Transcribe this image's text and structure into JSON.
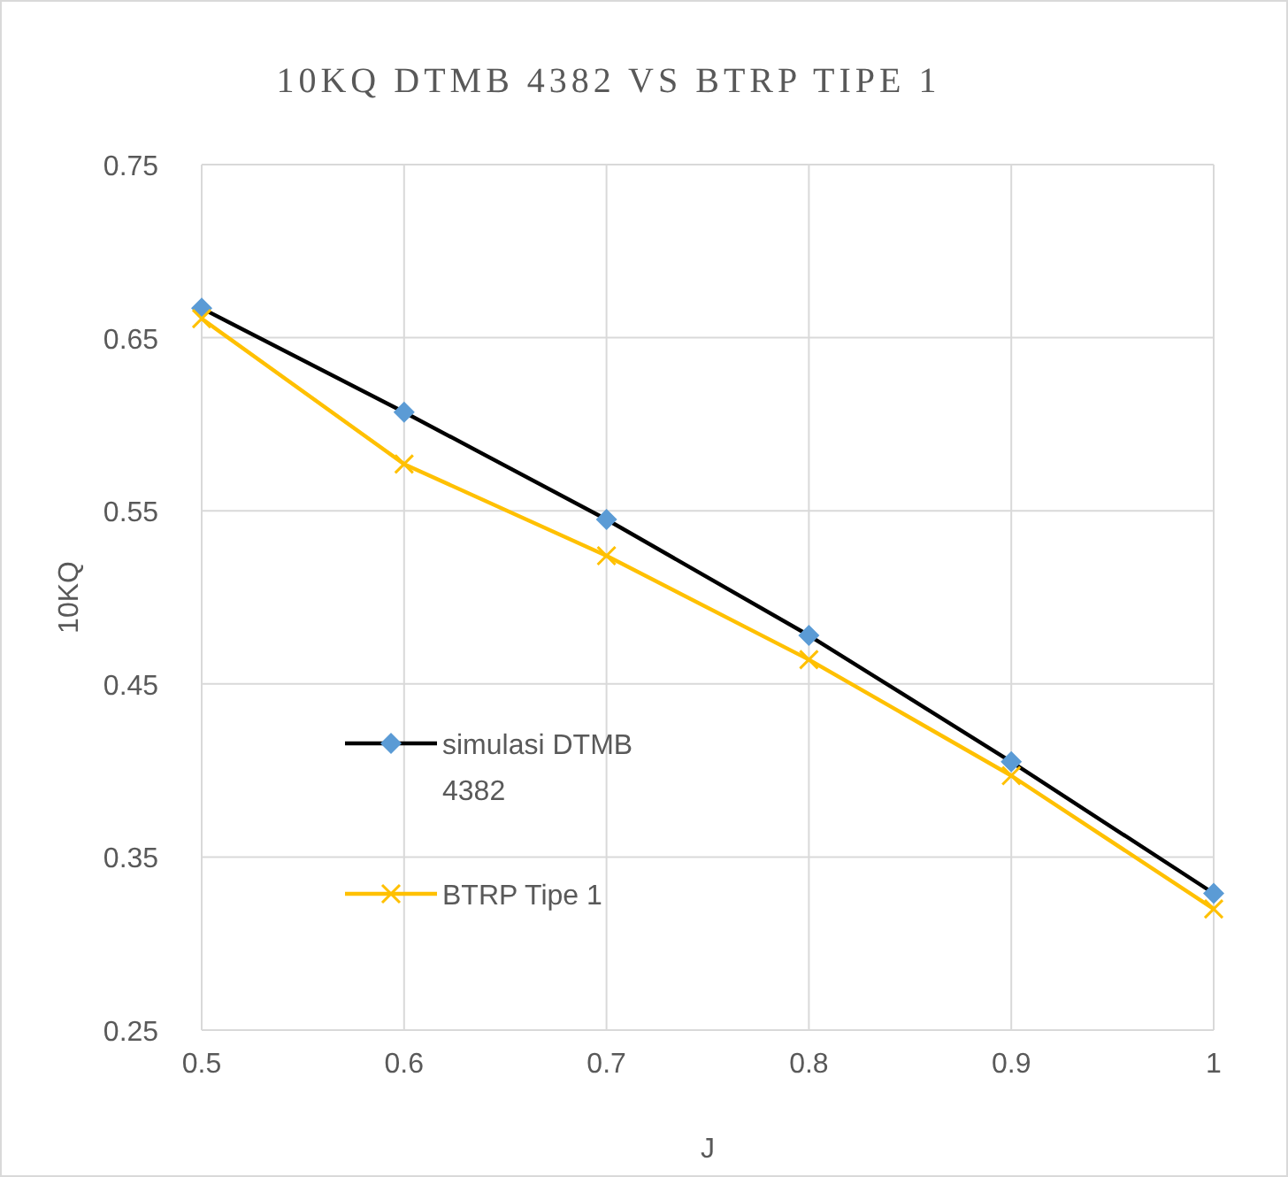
{
  "chart_data": {
    "type": "line",
    "title": "10KQ DTMB 4382 VS BTRP TIPE 1",
    "xlabel": "J",
    "ylabel": "10KQ",
    "x": [
      0.5,
      0.6,
      0.7,
      0.8,
      0.9,
      1
    ],
    "series": [
      {
        "name": "simulasi DTMB 4382",
        "color": "#000000",
        "colors": [
          "#5b9bd5",
          "#5b9bd5",
          "#5b9bd5",
          "#5b9bd5",
          "#5b9bd5",
          "#5b9bd5"
        ],
        "marker": "diamond",
        "values": [
          0.667,
          0.607,
          0.545,
          0.478,
          0.405,
          0.329
        ]
      },
      {
        "name": "BTRP Tipe 1",
        "color": "#ffc000",
        "marker": "cross",
        "values": [
          0.661,
          0.577,
          0.524,
          0.464,
          0.397,
          0.32
        ]
      }
    ],
    "xlim": [
      0.5,
      1
    ],
    "xticks": [
      0.5,
      0.6,
      0.7,
      0.8,
      0.9,
      1
    ],
    "ylim": [
      0.25,
      0.75
    ],
    "yticks": [
      0.25,
      0.35,
      0.45,
      0.55,
      0.65,
      0.75
    ],
    "grid": true,
    "legend": "left",
    "line_style": "solid"
  }
}
